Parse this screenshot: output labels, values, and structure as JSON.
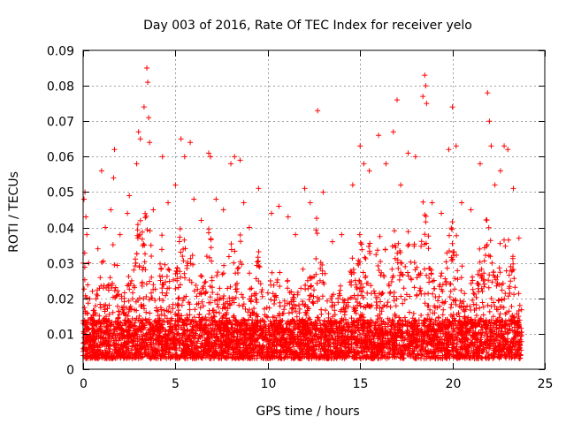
{
  "chart_data": {
    "type": "scatter",
    "title": "Day 003 of 2016, Rate Of TEC Index for receiver yelo",
    "xlabel": "GPS time / hours",
    "ylabel": "ROTI / TECUs",
    "xlim": [
      0,
      25
    ],
    "ylim": [
      0,
      0.09
    ],
    "xticks": [
      0,
      5,
      10,
      15,
      20,
      25
    ],
    "yticks": [
      0,
      0.01,
      0.02,
      0.03,
      0.04,
      0.05,
      0.06,
      0.07,
      0.08,
      0.09
    ],
    "xtick_labels": [
      "0",
      "5",
      "10",
      "15",
      "20",
      "25"
    ],
    "ytick_labels": [
      "0",
      "0.01",
      "0.02",
      "0.03",
      "0.04",
      "0.05",
      "0.06",
      "0.07",
      "0.08",
      "0.09"
    ],
    "grid": true,
    "marker": "+",
    "marker_color": "#ff0000",
    "series": [
      {
        "name": "ROTI",
        "points": [
          [
            0.05,
            0.048
          ],
          [
            0.1,
            0.05
          ],
          [
            0.15,
            0.043
          ],
          [
            0.2,
            0.038
          ],
          [
            0.3,
            0.03
          ],
          [
            0.5,
            0.022
          ],
          [
            0.8,
            0.034
          ],
          [
            1.0,
            0.056
          ],
          [
            1.2,
            0.04
          ],
          [
            1.5,
            0.045
          ],
          [
            1.7,
            0.062
          ],
          [
            1.65,
            0.054
          ],
          [
            2.0,
            0.038
          ],
          [
            2.4,
            0.044
          ],
          [
            2.5,
            0.049
          ],
          [
            2.9,
            0.058
          ],
          [
            3.0,
            0.067
          ],
          [
            3.1,
            0.065
          ],
          [
            3.3,
            0.074
          ],
          [
            3.45,
            0.085
          ],
          [
            3.5,
            0.081
          ],
          [
            3.55,
            0.071
          ],
          [
            3.6,
            0.064
          ],
          [
            3.8,
            0.045
          ],
          [
            4.3,
            0.06
          ],
          [
            4.6,
            0.047
          ],
          [
            5.0,
            0.052
          ],
          [
            5.3,
            0.065
          ],
          [
            5.5,
            0.06
          ],
          [
            5.8,
            0.064
          ],
          [
            6.0,
            0.048
          ],
          [
            6.4,
            0.042
          ],
          [
            6.8,
            0.061
          ],
          [
            6.9,
            0.06
          ],
          [
            7.2,
            0.048
          ],
          [
            7.6,
            0.045
          ],
          [
            8.0,
            0.058
          ],
          [
            8.2,
            0.06
          ],
          [
            8.5,
            0.059
          ],
          [
            8.7,
            0.047
          ],
          [
            9.0,
            0.04
          ],
          [
            9.5,
            0.051
          ],
          [
            10.2,
            0.044
          ],
          [
            10.6,
            0.046
          ],
          [
            11.1,
            0.043
          ],
          [
            11.5,
            0.038
          ],
          [
            12.0,
            0.051
          ],
          [
            12.3,
            0.047
          ],
          [
            12.7,
            0.073
          ],
          [
            13.0,
            0.05
          ],
          [
            13.5,
            0.036
          ],
          [
            14.0,
            0.038
          ],
          [
            14.6,
            0.052
          ],
          [
            15.0,
            0.063
          ],
          [
            15.2,
            0.058
          ],
          [
            15.5,
            0.056
          ],
          [
            16.0,
            0.066
          ],
          [
            16.4,
            0.058
          ],
          [
            16.8,
            0.067
          ],
          [
            17.0,
            0.076
          ],
          [
            17.2,
            0.052
          ],
          [
            17.6,
            0.061
          ],
          [
            18.0,
            0.06
          ],
          [
            18.4,
            0.077
          ],
          [
            18.5,
            0.083
          ],
          [
            18.55,
            0.08
          ],
          [
            18.6,
            0.075
          ],
          [
            18.9,
            0.047
          ],
          [
            19.4,
            0.044
          ],
          [
            19.8,
            0.062
          ],
          [
            20.0,
            0.074
          ],
          [
            20.2,
            0.063
          ],
          [
            20.5,
            0.047
          ],
          [
            21.0,
            0.045
          ],
          [
            21.5,
            0.058
          ],
          [
            21.9,
            0.078
          ],
          [
            22.0,
            0.07
          ],
          [
            22.1,
            0.063
          ],
          [
            22.3,
            0.052
          ],
          [
            22.6,
            0.056
          ],
          [
            22.8,
            0.063
          ],
          [
            23.0,
            0.062
          ],
          [
            23.3,
            0.051
          ],
          [
            23.6,
            0.037
          ]
        ]
      }
    ]
  }
}
